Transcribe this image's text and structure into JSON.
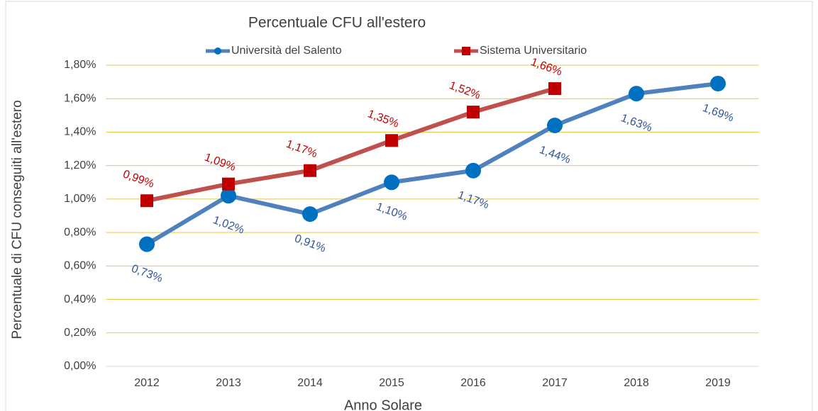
{
  "chart_data": {
    "type": "line",
    "title": "Percentuale  CFU all'estero",
    "xlabel": "Anno Solare",
    "ylabel": "Percentuale di CFU conseguiti all'estero",
    "categories": [
      "2012",
      "2013",
      "2014",
      "2015",
      "2016",
      "2017",
      "2018",
      "2019"
    ],
    "series": [
      {
        "name": "Università del Salento",
        "color": "#4f81bd",
        "marker_color": "#0070c0",
        "marker": "circle",
        "label_color": "#2f5597",
        "values": [
          0.73,
          1.02,
          0.91,
          1.1,
          1.17,
          1.44,
          1.63,
          1.69
        ],
        "value_labels": [
          "0,73%",
          "1,02%",
          "0,91%",
          "1,10%",
          "1,17%",
          "1,44%",
          "1,63%",
          "1,69%"
        ]
      },
      {
        "name": "Sistema Universitario",
        "color": "#c0504d",
        "marker_color": "#c00000",
        "marker": "square",
        "label_color": "#c00000",
        "values": [
          0.99,
          1.09,
          1.17,
          1.35,
          1.52,
          1.66,
          null,
          null
        ],
        "value_labels": [
          "0,99%",
          "1,09%",
          "1,17%",
          "1,35%",
          "1,52%",
          "1,66%",
          null,
          null
        ]
      }
    ],
    "ylim": [
      0,
      1.8
    ],
    "yticks": [
      {
        "value": 0,
        "label": "0,00%"
      },
      {
        "value": 0.2,
        "label": "0,20%"
      },
      {
        "value": 0.4,
        "label": "0,40%"
      },
      {
        "value": 0.6,
        "label": "0,60%"
      },
      {
        "value": 0.8,
        "label": "0,80%"
      },
      {
        "value": 1.0,
        "label": "1,00%"
      },
      {
        "value": 1.2,
        "label": "1,20%"
      },
      {
        "value": 1.4,
        "label": "1,40%"
      },
      {
        "value": 1.6,
        "label": "1,60%"
      },
      {
        "value": 1.8,
        "label": "1,80%"
      }
    ],
    "grid": true,
    "grid_color": "#e6c84a",
    "legend": "top"
  }
}
